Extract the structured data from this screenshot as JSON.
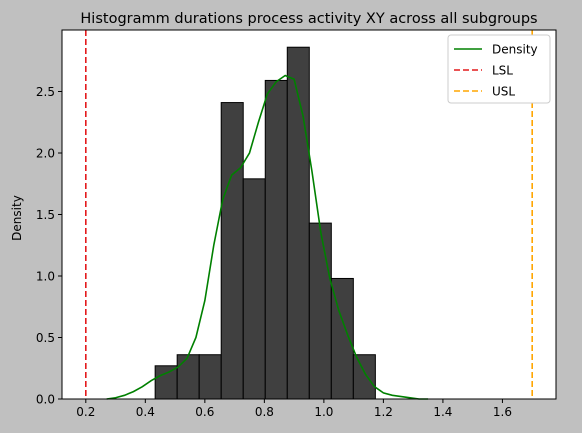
{
  "chart_data": {
    "type": "histogram",
    "title": "Histogramm durations process activity XY across all subgroups",
    "xlabel": "",
    "ylabel": "Density",
    "xlim": [
      0.12,
      1.78
    ],
    "ylim": [
      0,
      3.0
    ],
    "x_ticks": [
      "0.2",
      "0.4",
      "0.6",
      "0.8",
      "1.0",
      "1.2",
      "1.4",
      "1.6"
    ],
    "x_tick_values": [
      0.2,
      0.4,
      0.6,
      0.8,
      1.0,
      1.2,
      1.4,
      1.6
    ],
    "y_ticks": [
      "0.0",
      "0.5",
      "1.0",
      "1.5",
      "2.0",
      "2.5"
    ],
    "y_tick_values": [
      0.0,
      0.5,
      1.0,
      1.5,
      2.0,
      2.5
    ],
    "bins": [
      {
        "x0": 0.433,
        "x1": 0.507,
        "value": 0.27
      },
      {
        "x0": 0.507,
        "x1": 0.581,
        "value": 0.36
      },
      {
        "x0": 0.581,
        "x1": 0.655,
        "value": 0.36
      },
      {
        "x0": 0.655,
        "x1": 0.729,
        "value": 2.41
      },
      {
        "x0": 0.729,
        "x1": 0.803,
        "value": 1.79
      },
      {
        "x0": 0.803,
        "x1": 0.877,
        "value": 2.59
      },
      {
        "x0": 0.877,
        "x1": 0.951,
        "value": 2.86
      },
      {
        "x0": 0.951,
        "x1": 1.025,
        "value": 1.43
      },
      {
        "x0": 1.025,
        "x1": 1.099,
        "value": 0.98
      },
      {
        "x0": 1.099,
        "x1": 1.173,
        "value": 0.36
      }
    ],
    "density": {
      "name": "Density",
      "x": [
        0.27,
        0.3,
        0.33,
        0.36,
        0.39,
        0.42,
        0.45,
        0.48,
        0.51,
        0.54,
        0.57,
        0.6,
        0.63,
        0.66,
        0.69,
        0.72,
        0.75,
        0.78,
        0.81,
        0.84,
        0.87,
        0.9,
        0.93,
        0.96,
        0.99,
        1.02,
        1.05,
        1.08,
        1.11,
        1.14,
        1.17,
        1.2,
        1.23,
        1.26,
        1.29,
        1.32,
        1.35
      ],
      "y": [
        0.0,
        0.01,
        0.03,
        0.06,
        0.1,
        0.15,
        0.19,
        0.22,
        0.26,
        0.33,
        0.5,
        0.8,
        1.25,
        1.62,
        1.82,
        1.88,
        2.0,
        2.25,
        2.48,
        2.58,
        2.63,
        2.6,
        2.3,
        1.85,
        1.35,
        0.98,
        0.72,
        0.52,
        0.34,
        0.2,
        0.1,
        0.05,
        0.03,
        0.02,
        0.01,
        0.0,
        0.0
      ]
    },
    "reference_lines": [
      {
        "name": "LSL",
        "x": 0.2,
        "color": "#e41a1c"
      },
      {
        "name": "USL",
        "x": 1.7,
        "color": "#ffa500"
      }
    ],
    "legend": {
      "placement": "top-right",
      "entries": [
        "Density",
        "LSL",
        "USL"
      ]
    },
    "grid": false,
    "colors": {
      "bar_fill": "#404040",
      "bar_edge": "#000000",
      "density": "#008000",
      "background": "#c0c0c0",
      "plot_background": "#ffffff"
    }
  }
}
